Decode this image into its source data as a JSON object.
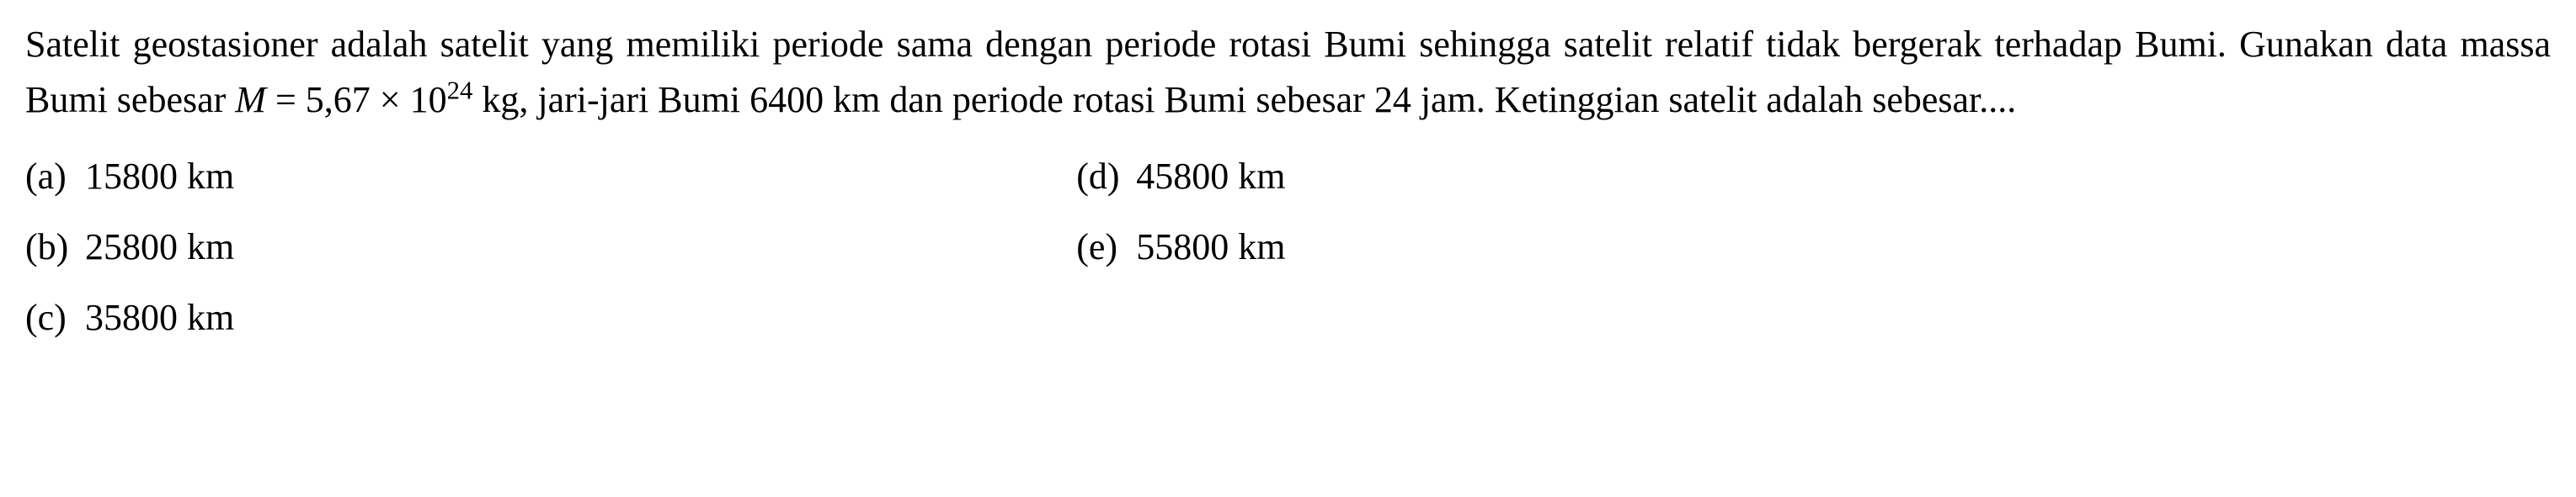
{
  "question": {
    "text_part1": "Satelit geostasioner adalah satelit yang memiliki periode sama dengan periode rotasi Bumi sehingga satelit relatif tidak bergerak terhadap Bumi.  Gunakan data massa Bumi sebesar ",
    "mass_var": "M",
    "equals": " = 5,67 × 10",
    "exponent": "24",
    "unit_mass": " kg",
    "text_part2": ", jari-jari Bumi 6400 km dan periode rotasi Bumi sebesar 24 jam.  Ketinggian satelit adalah sebesar...."
  },
  "options": {
    "left": [
      {
        "label": "(a)",
        "value": "15800 km"
      },
      {
        "label": "(b)",
        "value": "25800 km"
      },
      {
        "label": "(c)",
        "value": "35800 km"
      }
    ],
    "right": [
      {
        "label": "(d)",
        "value": "45800 km"
      },
      {
        "label": "(e)",
        "value": "55800 km"
      }
    ]
  },
  "styling": {
    "font_family": "Times New Roman",
    "font_size_body": 44,
    "text_color": "#000000",
    "background_color": "#ffffff",
    "line_height": 1.5
  }
}
